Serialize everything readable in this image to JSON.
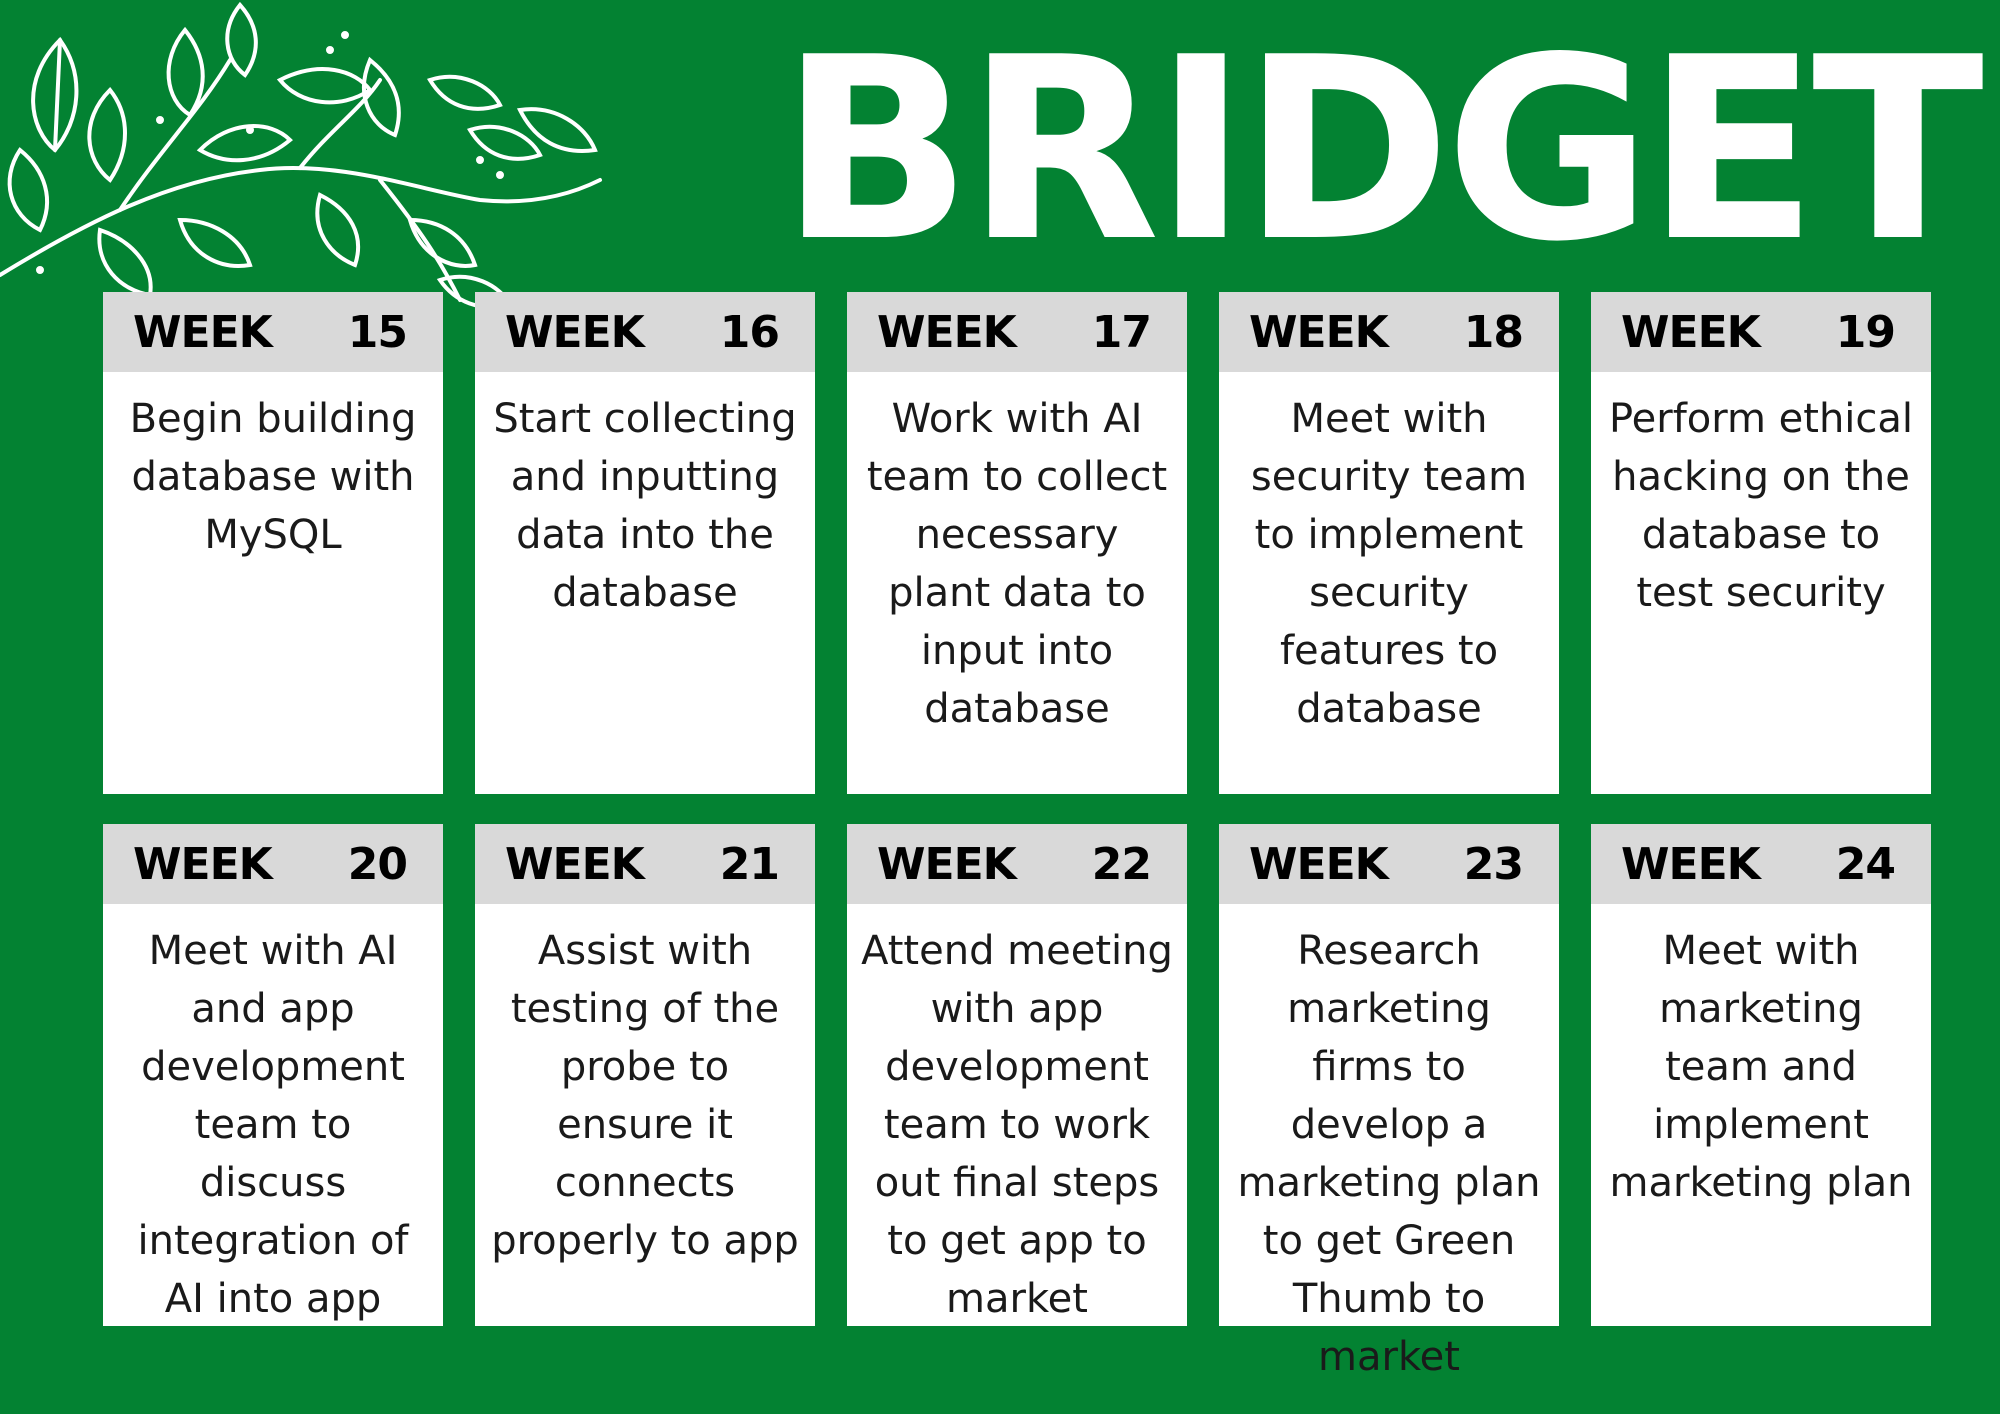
{
  "title": "BRIDGET",
  "decoration": {
    "icon": "leafy-branch-icon",
    "color": "#ffffff"
  },
  "colors": {
    "background": "#038232",
    "card": "#ffffff",
    "card_header": "#d9d9d9"
  },
  "weeks": [
    {
      "label": "WEEK",
      "number": "15",
      "task": "Begin building database with MySQL"
    },
    {
      "label": "WEEK",
      "number": "16",
      "task": "Start collecting and inputting data into the database"
    },
    {
      "label": "WEEK",
      "number": "17",
      "task": "Work with AI team to collect necessary plant data to input into database"
    },
    {
      "label": "WEEK",
      "number": "18",
      "task": "Meet with security team to implement security features to database"
    },
    {
      "label": "WEEK",
      "number": "19",
      "task": "Perform ethical hacking on the database to test security"
    },
    {
      "label": "WEEK",
      "number": "20",
      "task": "Meet with AI and app development team to discuss integration of AI into app"
    },
    {
      "label": "WEEK",
      "number": "21",
      "task": "Assist with testing of the probe to ensure it connects properly to app"
    },
    {
      "label": "WEEK",
      "number": "22",
      "task": "Attend meeting with app development team to work out final steps to get app to market"
    },
    {
      "label": "WEEK",
      "number": "23",
      "task": "Research marketing firms to develop a marketing plan to get Green Thumb to market"
    },
    {
      "label": "WEEK",
      "number": "24",
      "task": "Meet with marketing team and implement marketing plan"
    }
  ]
}
